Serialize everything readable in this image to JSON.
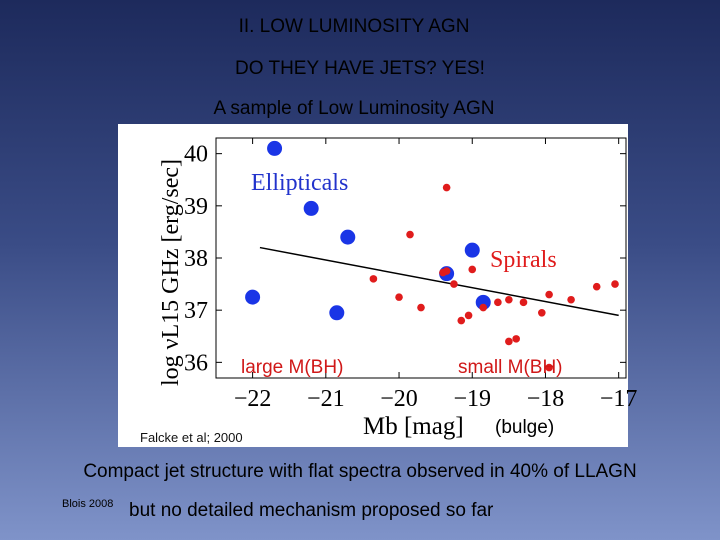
{
  "slide": {
    "title_line1": "II.  LOW LUMINOSITY AGN",
    "title_line2": "DO THEY HAVE JETS? YES!",
    "subtitle": "A sample of Low Luminosity AGN",
    "summary_line1": "Compact jet structure with flat spectra observed in 40% of LLAGN",
    "ref_small": "Blois 2008",
    "summary_line2": "but no detailed mechanism proposed so far"
  },
  "chart_data": {
    "type": "scatter",
    "xlabel": "Mb [mag]",
    "ylabel": "log νL15 GHz  [erg/sec]",
    "xlim": [
      -22.5,
      -16.9
    ],
    "ylim": [
      35.7,
      40.3
    ],
    "xticks": [
      -22,
      -21,
      -20,
      -19,
      -18,
      -17
    ],
    "xtick_labels": [
      "−22",
      "−21",
      "−20",
      "−19",
      "−18",
      "−17"
    ],
    "yticks": [
      36,
      37,
      38,
      39,
      40
    ],
    "ytick_labels": [
      "36",
      "37",
      "38",
      "39",
      "40"
    ],
    "colors": {
      "ellipticals": "#1a35e6",
      "spirals": "#e01c1c",
      "fit": "#000000"
    },
    "series": [
      {
        "name": "Ellipticals",
        "marker": "large-dot",
        "x": [
          -21.7,
          -21.2,
          -20.7,
          -19.35,
          -19.0,
          -18.85,
          -22.0,
          -20.85
        ],
        "y": [
          40.1,
          38.95,
          38.4,
          37.7,
          38.15,
          37.15,
          37.25,
          36.95
        ]
      },
      {
        "name": "Spirals",
        "marker": "small-dot",
        "x": [
          -19.35,
          -19.85,
          -19.35,
          -19.0,
          -19.4,
          -19.25,
          -20.35,
          -20.0,
          -19.7,
          -19.15,
          -18.85,
          -18.65,
          -18.5,
          -18.3,
          -18.05,
          -17.95,
          -17.65,
          -17.3,
          -17.05,
          -19.05,
          -18.5,
          -18.4,
          -17.95
        ],
        "y": [
          39.35,
          38.45,
          37.75,
          37.78,
          37.72,
          37.5,
          37.6,
          37.25,
          37.05,
          36.8,
          37.05,
          37.15,
          37.2,
          37.15,
          36.95,
          37.3,
          37.2,
          37.45,
          37.5,
          36.9,
          36.4,
          36.45,
          35.9
        ]
      },
      {
        "name": "fit",
        "marker": "line",
        "x": [
          -21.9,
          -17.0
        ],
        "y": [
          38.2,
          36.9
        ]
      }
    ],
    "legend": [
      {
        "text": "Ellipticals",
        "placement": "upper-left"
      },
      {
        "text": "Spirals",
        "placement": "right"
      }
    ],
    "annotations": [
      {
        "text": "large M(BH)"
      },
      {
        "text": "small M(BH)"
      },
      {
        "text": "Falcke et al; 2000"
      },
      {
        "text": "(bulge)"
      }
    ]
  }
}
